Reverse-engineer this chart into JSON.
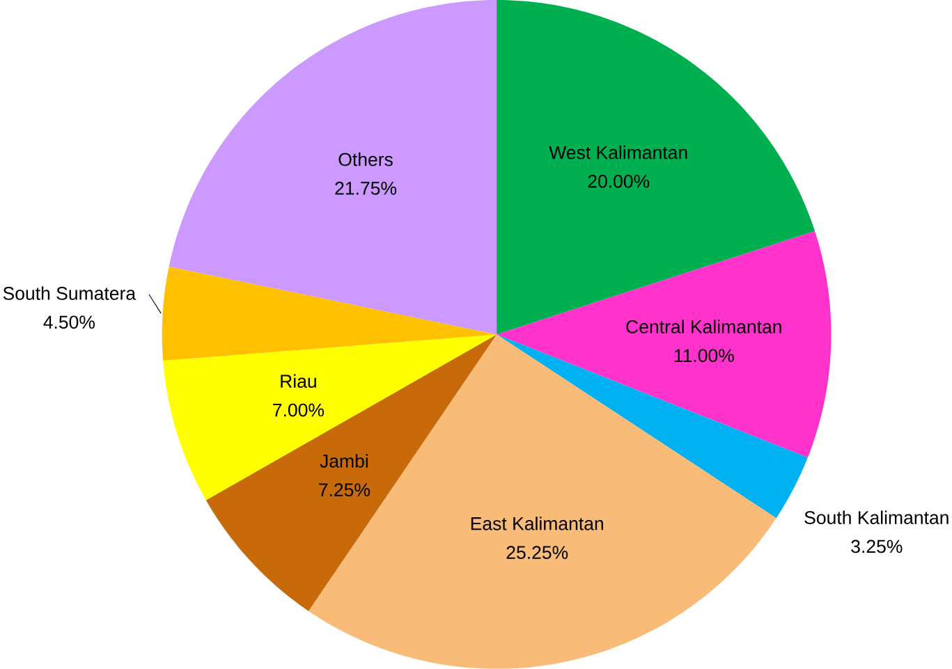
{
  "chart_data": {
    "type": "pie",
    "categories": [
      "West Kalimantan",
      "Central Kalimantan",
      "South Kalimantan",
      "East Kalimantan",
      "Jambi",
      "Riau",
      "South Sumatera",
      "Others"
    ],
    "values": [
      20.0,
      11.0,
      3.25,
      25.25,
      7.25,
      7.0,
      4.5,
      21.75
    ],
    "value_labels": [
      "20.00%",
      "11.00%",
      "3.25%",
      "25.25%",
      "7.25%",
      "7.00%",
      "4.50%",
      "21.75%"
    ],
    "colors": [
      "#00b050",
      "#ff33cc",
      "#00b0f0",
      "#f8bb78",
      "#c8690a",
      "#ffff00",
      "#ffc000",
      "#cc99ff"
    ]
  }
}
